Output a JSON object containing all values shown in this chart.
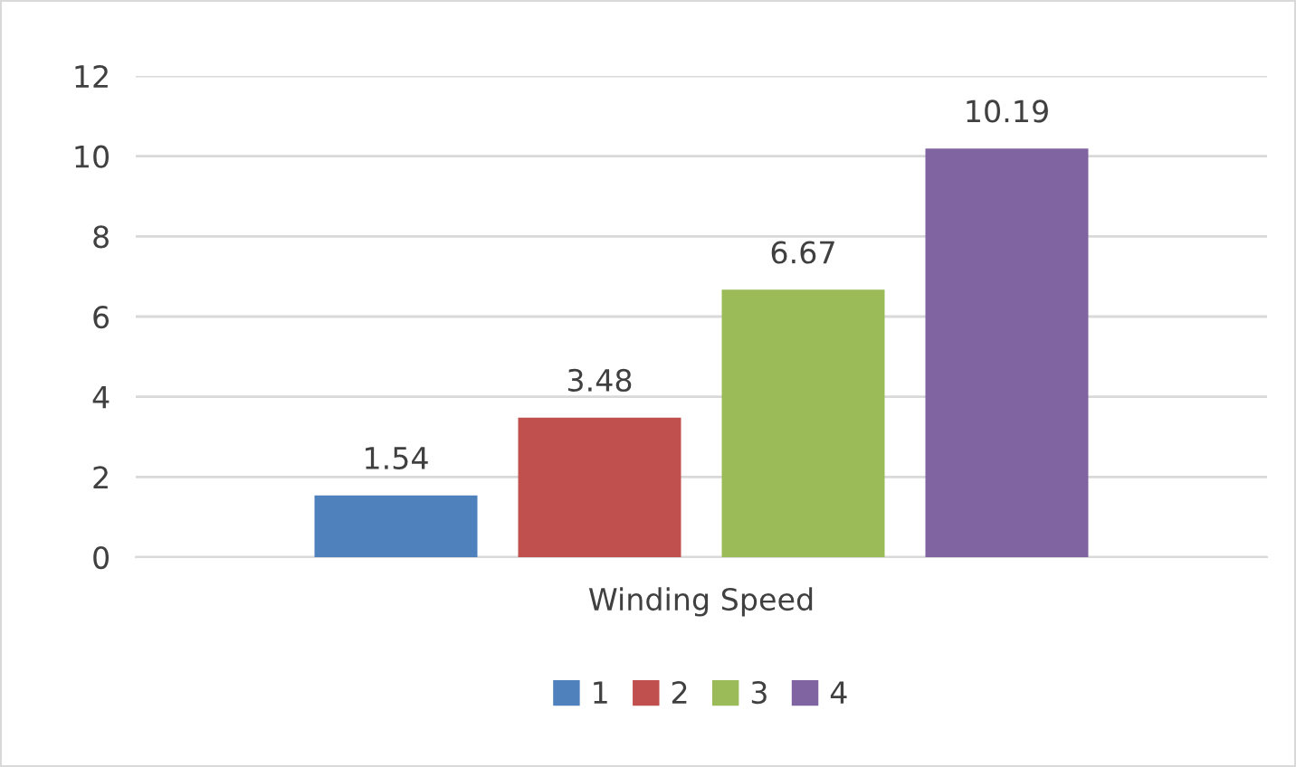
{
  "chart_data": {
    "type": "bar",
    "categories": [
      "Winding Speed"
    ],
    "series": [
      {
        "name": "1",
        "color": "#4f81bd",
        "values": [
          1.54
        ]
      },
      {
        "name": "2",
        "color": "#c0504d",
        "values": [
          3.48
        ]
      },
      {
        "name": "3",
        "color": "#9bbb59",
        "values": [
          6.67
        ]
      },
      {
        "name": "4",
        "color": "#8064a2",
        "values": [
          10.19
        ]
      }
    ],
    "ylim": [
      0,
      12
    ],
    "yticks": [
      0,
      2,
      4,
      6,
      8,
      10,
      12
    ],
    "grid": "y",
    "legend": "bottom",
    "data_labels": true
  }
}
